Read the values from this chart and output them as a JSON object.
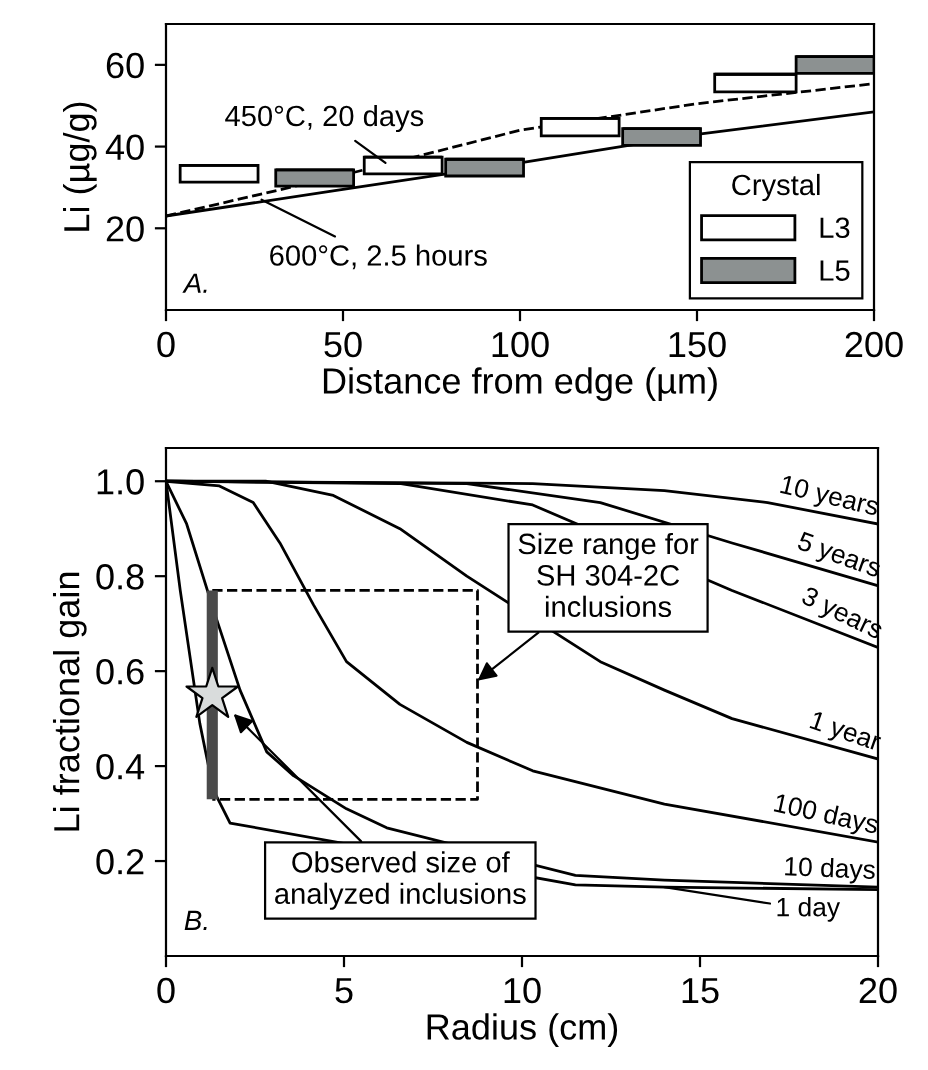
{
  "chart_data": [
    {
      "type": "bar",
      "xlabel": "Distance from edge (µm)",
      "ylabel": "Li (µg/g)",
      "legend_title": "Crystal",
      "legend": "bottom right",
      "xlim": [
        0,
        200
      ],
      "ylim": [
        0,
        70
      ],
      "xticks": [
        0,
        50,
        100,
        150,
        200
      ],
      "yticks": [
        20,
        40,
        60
      ],
      "grid": false,
      "series": [
        {
          "name": "L3",
          "type": "bar",
          "color": "#ffffff",
          "x": [
            15,
            67,
            117,
            166.5
          ],
          "xerrors": [
            11,
            11,
            11,
            11.5
          ],
          "base": [
            31.3,
            33.3,
            42.6,
            53.4
          ],
          "values": [
            4.1,
            4.1,
            4.3,
            4.3
          ]
        },
        {
          "name": "L5",
          "type": "bar",
          "color": "#8c9191",
          "x": [
            42,
            90,
            140,
            189
          ],
          "xerrors": [
            11,
            11,
            11,
            11
          ],
          "base": [
            30.3,
            32.8,
            40.3,
            57.9
          ],
          "values": [
            4,
            4.1,
            4.1,
            4.1
          ]
        },
        {
          "type": "line",
          "line_style": "dashed",
          "color": "#000000",
          "x": [
            0,
            50,
            100,
            150,
            200
          ],
          "values": [
            23,
            33,
            44,
            50.5,
            55.4
          ]
        },
        {
          "type": "line",
          "line_style": "solid",
          "color": "#000000",
          "x": [
            0,
            50,
            100,
            150,
            200
          ],
          "values": [
            23,
            29.5,
            36,
            43,
            48.5
          ]
        }
      ],
      "annotations": [
        {
          "text": "450°C, 20 days",
          "x": 62,
          "y": 36
        },
        {
          "text": "600°C, 2.5 hours",
          "x": 27,
          "y": 27
        },
        "A."
      ]
    },
    {
      "type": "line",
      "xlabel": "Radius (cm)",
      "ylabel": "Li fractional gain",
      "xlim": [
        0,
        20
      ],
      "ylim": [
        0,
        1.07
      ],
      "xticks": [
        0,
        5,
        10,
        15,
        20
      ],
      "yticks": [
        0.2,
        0.4,
        0.6,
        0.8,
        {
          "value": 1.0,
          "label": "1.0"
        }
      ],
      "grid": false,
      "series": [
        {
          "name": "10 years",
          "color": "#000000",
          "x": [
            0,
            10.3,
            14,
            16.9,
            20
          ],
          "values": [
            1.0,
            0.995,
            0.98,
            0.955,
            0.91
          ]
        },
        {
          "name": "5 years",
          "color": "#000000",
          "x": [
            0,
            8.45,
            12.2,
            15.9,
            20
          ],
          "values": [
            1.0,
            0.995,
            0.955,
            0.87,
            0.78
          ]
        },
        {
          "name": "3 years",
          "color": "#000000",
          "x": [
            0,
            6.6,
            10.3,
            15.9,
            20
          ],
          "values": [
            1.0,
            0.995,
            0.95,
            0.77,
            0.65
          ]
        },
        {
          "name": "1 year",
          "color": "#000000",
          "x": [
            0,
            2.8,
            4.7,
            6.57,
            8.45,
            12.2,
            14,
            15.9,
            20
          ],
          "values": [
            1.0,
            1.0,
            0.97,
            0.9,
            0.8,
            0.62,
            0.56,
            0.5,
            0.415
          ]
        },
        {
          "name": "100 days",
          "color": "#000000",
          "x": [
            0,
            1.5,
            2.45,
            3.2,
            4.14,
            5.07,
            6.57,
            8.45,
            10.3,
            14,
            20
          ],
          "values": [
            1.0,
            0.99,
            0.955,
            0.87,
            0.74,
            0.62,
            0.53,
            0.45,
            0.39,
            0.32,
            0.24
          ]
        },
        {
          "name": "10 days",
          "color": "#000000",
          "x": [
            0,
            0.58,
            1.33,
            2.08,
            2.83,
            3.58,
            5.07,
            6.2,
            11.5,
            14,
            20
          ],
          "values": [
            1.0,
            0.91,
            0.73,
            0.56,
            0.43,
            0.38,
            0.31,
            0.27,
            0.17,
            0.16,
            0.145
          ]
        },
        {
          "name": "1 day",
          "color": "#000000",
          "x": [
            0,
            0.4,
            0.95,
            1.33,
            1.8,
            11.5,
            14,
            20
          ],
          "values": [
            1.0,
            0.77,
            0.49,
            0.35,
            0.28,
            0.15,
            0.145,
            0.14
          ]
        },
        {
          "type": "line",
          "line_style": "dashed",
          "color": "#000000",
          "x": [
            1.3,
            8.75,
            8.75,
            1.3
          ],
          "values": [
            0.77,
            0.77,
            0.33,
            0.33
          ]
        },
        {
          "type": "scatter",
          "marker": "star",
          "color": "#d9dcdc",
          "x": [
            1.3
          ],
          "values": [
            0.55
          ],
          "errors": [
            [
              0.33,
              0.77
            ]
          ]
        }
      ],
      "annotations": [
        {
          "text": "Size range for\nSH 304-2C\ninclusions",
          "x": 8.75,
          "y": 0.58
        },
        {
          "text": "Observed size of\nanalyzed inclusions",
          "x": 1.9,
          "y": 0.51
        },
        "B."
      ]
    }
  ]
}
